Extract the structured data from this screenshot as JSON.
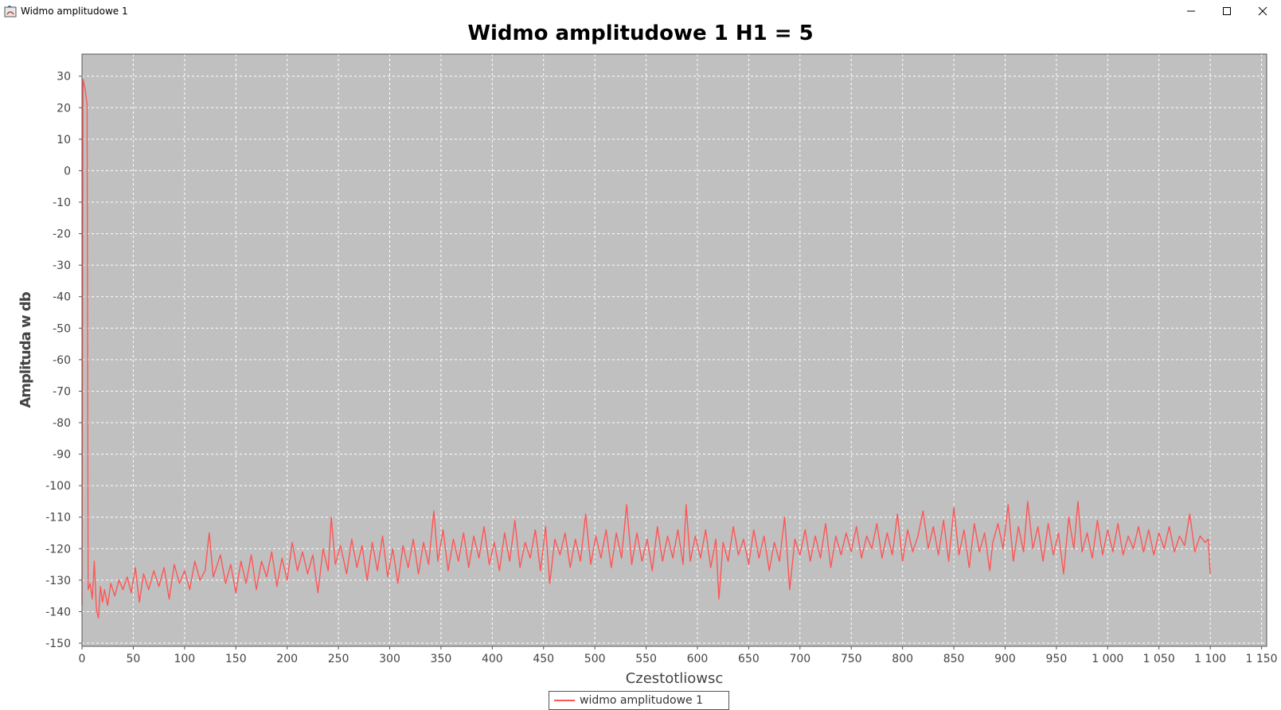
{
  "window": {
    "title": "Widmo amplitudowe 1",
    "controls": [
      "minimize",
      "maximize",
      "close"
    ]
  },
  "chart_data": {
    "type": "line",
    "title": "Widmo amplitudowe 1 H1 = 5",
    "xlabel": "Czestotliowsc",
    "ylabel": "Amplituda w db",
    "xlim": [
      0,
      1155
    ],
    "ylim": [
      -151,
      37
    ],
    "xticks": [
      0,
      50,
      100,
      150,
      200,
      250,
      300,
      350,
      400,
      450,
      500,
      550,
      600,
      650,
      700,
      750,
      800,
      850,
      900,
      950,
      1000,
      1050,
      1100,
      1150
    ],
    "xtick_labels": [
      "0",
      "50",
      "100",
      "150",
      "200",
      "250",
      "300",
      "350",
      "400",
      "450",
      "500",
      "550",
      "600",
      "650",
      "700",
      "750",
      "800",
      "850",
      "900",
      "950",
      "1 000",
      "1 050",
      "1 100",
      "1 150"
    ],
    "yticks": [
      30,
      20,
      10,
      0,
      -10,
      -20,
      -30,
      -40,
      -50,
      -60,
      -70,
      -80,
      -90,
      -100,
      -110,
      -120,
      -130,
      -140,
      -150
    ],
    "ytick_labels": [
      "30",
      "20",
      "10",
      "0",
      "-10",
      "-20",
      "-30",
      "-40",
      "-50",
      "-60",
      "-70",
      "-80",
      "-90",
      "-100",
      "-110",
      "-120",
      "-130",
      "-140",
      "-150"
    ],
    "grid": true,
    "legend_position": "bottom-center",
    "plot_background": "#c0c0c0",
    "series": [
      {
        "name": "widmo amplitudowe 1",
        "color": "#ff5555",
        "points": [
          [
            0,
            -138
          ],
          [
            1,
            29
          ],
          [
            3,
            26
          ],
          [
            5,
            21
          ],
          [
            6,
            -133
          ],
          [
            8,
            -131
          ],
          [
            10,
            -136
          ],
          [
            12,
            -124
          ],
          [
            14,
            -139
          ],
          [
            16,
            -142
          ],
          [
            18,
            -132
          ],
          [
            20,
            -137
          ],
          [
            22,
            -133
          ],
          [
            25,
            -138
          ],
          [
            28,
            -131
          ],
          [
            32,
            -135
          ],
          [
            36,
            -130
          ],
          [
            40,
            -133
          ],
          [
            44,
            -129
          ],
          [
            48,
            -134
          ],
          [
            52,
            -126
          ],
          [
            56,
            -137
          ],
          [
            60,
            -128
          ],
          [
            65,
            -133
          ],
          [
            70,
            -127
          ],
          [
            75,
            -132
          ],
          [
            80,
            -126
          ],
          [
            85,
            -136
          ],
          [
            90,
            -125
          ],
          [
            95,
            -131
          ],
          [
            100,
            -127
          ],
          [
            105,
            -133
          ],
          [
            110,
            -124
          ],
          [
            115,
            -130
          ],
          [
            120,
            -127
          ],
          [
            124,
            -115
          ],
          [
            128,
            -129
          ],
          [
            135,
            -122
          ],
          [
            140,
            -131
          ],
          [
            145,
            -125
          ],
          [
            150,
            -134
          ],
          [
            155,
            -124
          ],
          [
            160,
            -131
          ],
          [
            165,
            -122
          ],
          [
            170,
            -133
          ],
          [
            175,
            -124
          ],
          [
            180,
            -129
          ],
          [
            185,
            -121
          ],
          [
            190,
            -132
          ],
          [
            195,
            -123
          ],
          [
            200,
            -130
          ],
          [
            205,
            -118
          ],
          [
            210,
            -127
          ],
          [
            215,
            -121
          ],
          [
            220,
            -128
          ],
          [
            225,
            -122
          ],
          [
            230,
            -134
          ],
          [
            235,
            -120
          ],
          [
            240,
            -127
          ],
          [
            243,
            -110
          ],
          [
            247,
            -125
          ],
          [
            252,
            -119
          ],
          [
            258,
            -128
          ],
          [
            263,
            -117
          ],
          [
            268,
            -126
          ],
          [
            273,
            -119
          ],
          [
            278,
            -130
          ],
          [
            283,
            -118
          ],
          [
            288,
            -127
          ],
          [
            293,
            -116
          ],
          [
            298,
            -129
          ],
          [
            303,
            -120
          ],
          [
            308,
            -131
          ],
          [
            313,
            -119
          ],
          [
            318,
            -126
          ],
          [
            323,
            -117
          ],
          [
            328,
            -128
          ],
          [
            333,
            -118
          ],
          [
            338,
            -125
          ],
          [
            343,
            -108
          ],
          [
            347,
            -124
          ],
          [
            352,
            -114
          ],
          [
            357,
            -127
          ],
          [
            362,
            -117
          ],
          [
            367,
            -124
          ],
          [
            372,
            -115
          ],
          [
            377,
            -126
          ],
          [
            382,
            -116
          ],
          [
            387,
            -123
          ],
          [
            392,
            -113
          ],
          [
            397,
            -125
          ],
          [
            402,
            -118
          ],
          [
            407,
            -127
          ],
          [
            412,
            -115
          ],
          [
            417,
            -124
          ],
          [
            422,
            -111
          ],
          [
            427,
            -126
          ],
          [
            432,
            -118
          ],
          [
            437,
            -123
          ],
          [
            442,
            -114
          ],
          [
            447,
            -127
          ],
          [
            452,
            -113
          ],
          [
            456,
            -131
          ],
          [
            461,
            -117
          ],
          [
            466,
            -122
          ],
          [
            471,
            -115
          ],
          [
            476,
            -126
          ],
          [
            481,
            -117
          ],
          [
            486,
            -124
          ],
          [
            491,
            -109
          ],
          [
            496,
            -125
          ],
          [
            501,
            -116
          ],
          [
            506,
            -123
          ],
          [
            511,
            -114
          ],
          [
            516,
            -126
          ],
          [
            521,
            -115
          ],
          [
            526,
            -123
          ],
          [
            531,
            -106
          ],
          [
            536,
            -125
          ],
          [
            541,
            -115
          ],
          [
            546,
            -124
          ],
          [
            551,
            -117
          ],
          [
            556,
            -127
          ],
          [
            561,
            -113
          ],
          [
            566,
            -124
          ],
          [
            571,
            -116
          ],
          [
            576,
            -123
          ],
          [
            581,
            -114
          ],
          [
            586,
            -125
          ],
          [
            589,
            -106
          ],
          [
            593,
            -124
          ],
          [
            598,
            -116
          ],
          [
            603,
            -123
          ],
          [
            608,
            -114
          ],
          [
            613,
            -126
          ],
          [
            618,
            -117
          ],
          [
            621,
            -136
          ],
          [
            625,
            -118
          ],
          [
            630,
            -124
          ],
          [
            635,
            -113
          ],
          [
            640,
            -122
          ],
          [
            645,
            -117
          ],
          [
            650,
            -125
          ],
          [
            655,
            -114
          ],
          [
            660,
            -123
          ],
          [
            665,
            -116
          ],
          [
            670,
            -127
          ],
          [
            675,
            -118
          ],
          [
            680,
            -124
          ],
          [
            685,
            -110
          ],
          [
            690,
            -133
          ],
          [
            695,
            -117
          ],
          [
            700,
            -122
          ],
          [
            705,
            -114
          ],
          [
            710,
            -124
          ],
          [
            715,
            -116
          ],
          [
            720,
            -123
          ],
          [
            725,
            -112
          ],
          [
            730,
            -126
          ],
          [
            735,
            -116
          ],
          [
            740,
            -122
          ],
          [
            745,
            -115
          ],
          [
            750,
            -121
          ],
          [
            755,
            -113
          ],
          [
            760,
            -123
          ],
          [
            765,
            -116
          ],
          [
            770,
            -120
          ],
          [
            775,
            -112
          ],
          [
            780,
            -123
          ],
          [
            785,
            -115
          ],
          [
            790,
            -122
          ],
          [
            795,
            -109
          ],
          [
            800,
            -124
          ],
          [
            805,
            -114
          ],
          [
            810,
            -121
          ],
          [
            815,
            -116
          ],
          [
            820,
            -108
          ],
          [
            825,
            -120
          ],
          [
            830,
            -113
          ],
          [
            835,
            -122
          ],
          [
            840,
            -111
          ],
          [
            845,
            -124
          ],
          [
            850,
            -107
          ],
          [
            855,
            -122
          ],
          [
            860,
            -114
          ],
          [
            865,
            -126
          ],
          [
            870,
            -112
          ],
          [
            875,
            -121
          ],
          [
            880,
            -115
          ],
          [
            885,
            -127
          ],
          [
            888,
            -118
          ],
          [
            893,
            -112
          ],
          [
            898,
            -120
          ],
          [
            903,
            -106
          ],
          [
            908,
            -124
          ],
          [
            913,
            -113
          ],
          [
            918,
            -121
          ],
          [
            922,
            -105
          ],
          [
            927,
            -120
          ],
          [
            932,
            -113
          ],
          [
            937,
            -124
          ],
          [
            942,
            -112
          ],
          [
            947,
            -122
          ],
          [
            952,
            -115
          ],
          [
            957,
            -128
          ],
          [
            962,
            -110
          ],
          [
            967,
            -120
          ],
          [
            971,
            -105
          ],
          [
            975,
            -121
          ],
          [
            980,
            -115
          ],
          [
            985,
            -123
          ],
          [
            990,
            -111
          ],
          [
            995,
            -122
          ],
          [
            1000,
            -114
          ],
          [
            1005,
            -121
          ],
          [
            1010,
            -112
          ],
          [
            1015,
            -122
          ],
          [
            1020,
            -116
          ],
          [
            1025,
            -120
          ],
          [
            1030,
            -113
          ],
          [
            1035,
            -121
          ],
          [
            1040,
            -114
          ],
          [
            1045,
            -122
          ],
          [
            1050,
            -115
          ],
          [
            1055,
            -120
          ],
          [
            1060,
            -113
          ],
          [
            1065,
            -121
          ],
          [
            1070,
            -116
          ],
          [
            1075,
            -119
          ],
          [
            1080,
            -109
          ],
          [
            1085,
            -121
          ],
          [
            1090,
            -116
          ],
          [
            1095,
            -118
          ],
          [
            1098,
            -117
          ],
          [
            1100,
            -128
          ]
        ]
      }
    ]
  }
}
